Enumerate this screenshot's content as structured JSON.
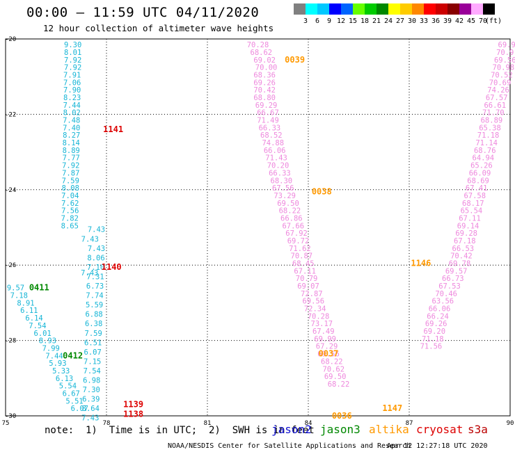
{
  "header": {
    "title": "00:00 — 11:59 UTC 04/11/2020",
    "subtitle": "12 hour collection of altimeter wave heights"
  },
  "colorbar": {
    "colors": [
      "#808080",
      "#00ffff",
      "#00c8ff",
      "#0000ff",
      "#0064ff",
      "#66ff00",
      "#00cc00",
      "#008800",
      "#ffff00",
      "#ffcc00",
      "#ff8800",
      "#ff0000",
      "#cc0000",
      "#880000",
      "#990099",
      "#ffaaff",
      "#000000"
    ],
    "labels": [
      "3",
      "6",
      "9",
      "12",
      "15",
      "18",
      "21",
      "24",
      "27",
      "30",
      "33",
      "36",
      "39",
      "42",
      "45",
      "70"
    ],
    "unit": "(ft)"
  },
  "footer": {
    "note": "note:  1)  Time is in UTC;  2)  SWH is in feet",
    "legend": [
      {
        "label": "jason2",
        "color": "#1010d0"
      },
      {
        "label": "jason3",
        "color": "#008800"
      },
      {
        "label": "altika",
        "color": "#ff9900"
      },
      {
        "label": "cryosat",
        "color": "#dd0000"
      },
      {
        "label": "s3a",
        "color": "#bb0000"
      }
    ],
    "credit": "NOAA/NESDIS Center for Satellite Applications and Research",
    "timestamp": "Apr 12 12:27:18 UTC 2020"
  },
  "chart_data": {
    "type": "scatter",
    "title": "00:00 — 11:59 UTC 04/11/2020",
    "subtitle": "12 hour collection of altimeter wave heights",
    "xlim": [
      75,
      90
    ],
    "ylim": [
      -30,
      -20
    ],
    "x_ticks": [
      "75",
      "78",
      "81",
      "84",
      "87",
      "90"
    ],
    "y_ticks": [
      "-20",
      "-22",
      "-24",
      "-26",
      "-28",
      "-30"
    ],
    "grid": true,
    "legend_position": "bottom",
    "series": [
      {
        "name": "jason3",
        "color": "#16b5d6",
        "x": [
          77.0,
          77.0,
          77.0,
          77.0,
          76.98,
          76.98,
          76.98,
          76.98,
          76.97,
          76.97,
          76.96,
          76.96,
          76.96,
          76.95,
          76.95,
          76.95,
          76.94,
          76.94,
          76.93,
          76.93,
          76.92,
          76.92,
          76.92,
          76.91,
          76.91
        ],
        "y": [
          -20.15,
          -20.35,
          -20.55,
          -20.75,
          -20.95,
          -21.15,
          -21.35,
          -21.55,
          -21.75,
          -21.95,
          -22.15,
          -22.35,
          -22.55,
          -22.75,
          -22.95,
          -23.15,
          -23.35,
          -23.55,
          -23.75,
          -23.95,
          -24.15,
          -24.35,
          -24.55,
          -24.75,
          -24.95
        ],
        "values": [
          "9.30",
          "8.01",
          "7.92",
          "7.92",
          "7.91",
          "7.06",
          "7.90",
          "8.23",
          "7.44",
          "8.02",
          "7.48",
          "7.40",
          "8.27",
          "8.14",
          "8.89",
          "7.77",
          "7.92",
          "7.87",
          "7.59",
          "8.08",
          "7.04",
          "7.62",
          "7.56",
          "7.82",
          "8.65"
        ]
      },
      {
        "name": "",
        "color": "#16b5d6",
        "x": [
          77.7,
          77.7,
          77.69,
          77.68,
          77.67,
          77.66,
          77.65,
          77.64,
          77.63,
          77.62,
          77.61,
          77.6,
          77.59,
          77.58,
          77.57,
          77.56,
          77.55,
          77.54,
          77.53,
          77.52,
          77.51,
          77.5
        ],
        "y": [
          -25.05,
          -25.55,
          -25.8,
          -26.05,
          -26.3,
          -26.55,
          -26.8,
          -27.05,
          -27.3,
          -27.55,
          -27.8,
          -28.05,
          -28.3,
          -28.55,
          -28.8,
          -29.05,
          -29.3,
          -29.55,
          -29.8,
          -30.05,
          -25.3,
          -26.2
        ],
        "values": [
          "7.43",
          "7.43",
          "8.06",
          "7.10",
          "7.31",
          "6.73",
          "7.74",
          "5.59",
          "6.88",
          "6.38",
          "7.59",
          "6.51",
          "6.07",
          "7.15",
          "7.54",
          "6.98",
          "7.30",
          "6.39",
          "8.64",
          "7.43",
          "7.43",
          "7.43"
        ]
      },
      {
        "name": "",
        "color": "#16b5d6",
        "x": [
          75.3,
          75.4,
          75.6,
          75.7,
          75.85,
          75.95,
          76.1,
          76.25,
          76.35,
          76.45,
          76.55,
          76.65,
          76.75,
          76.85,
          76.95,
          77.05,
          77.2
        ],
        "y": [
          -26.6,
          -26.8,
          -27.0,
          -27.2,
          -27.4,
          -27.6,
          -27.8,
          -28.0,
          -28.2,
          -28.4,
          -28.6,
          -28.8,
          -29.0,
          -29.2,
          -29.4,
          -29.6,
          -29.8
        ],
        "values": [
          "9.57",
          "7.18",
          "8.91",
          "6.11",
          "6.14",
          "7.54",
          "6.01",
          "8.93",
          "7.99",
          "7.44",
          "5.93",
          "5.33",
          "6.13",
          "5.54",
          "6.67",
          "5.51",
          "6.07"
        ]
      },
      {
        "name": "altika-left",
        "color": "#ee88dd",
        "x": [
          82.5,
          82.6,
          82.7,
          82.75,
          82.7,
          82.7,
          82.7,
          82.7,
          82.75,
          82.8,
          82.8,
          82.85,
          82.9,
          82.95,
          83.0,
          83.05,
          83.1,
          83.15,
          83.2,
          83.25,
          83.3,
          83.4,
          83.45,
          83.5,
          83.55,
          83.65,
          83.7,
          83.75,
          83.8,
          83.85,
          83.9,
          83.95,
          84.0,
          84.1,
          84.15,
          84.2,
          84.3,
          84.4,
          84.45,
          84.5,
          84.55,
          84.6,
          84.7,
          84.75,
          84.8,
          84.9
        ],
        "y": [
          -20.15,
          -20.35,
          -20.55,
          -20.75,
          -20.95,
          -21.15,
          -21.35,
          -21.55,
          -21.75,
          -21.95,
          -22.15,
          -22.35,
          -22.55,
          -22.75,
          -22.95,
          -23.15,
          -23.35,
          -23.55,
          -23.75,
          -23.95,
          -24.15,
          -24.35,
          -24.55,
          -24.75,
          -24.95,
          -25.15,
          -25.35,
          -25.55,
          -25.75,
          -25.95,
          -26.15,
          -26.35,
          -26.55,
          -26.75,
          -26.95,
          -27.15,
          -27.35,
          -27.55,
          -27.75,
          -27.95,
          -28.15,
          -28.35,
          -28.55,
          -28.75,
          -28.95,
          -29.15
        ],
        "values": [
          "70.28",
          "68.62",
          "69.02",
          "70.00",
          "68.36",
          "69.26",
          "70.42",
          "68.80",
          "69.29",
          "66.67",
          "71.49",
          "66.33",
          "68.52",
          "74.88",
          "66.06",
          "71.43",
          "70.20",
          "66.33",
          "68.30",
          "67.56",
          "73.29",
          "69.50",
          "68.22",
          "66.86",
          "67.66",
          "67.92",
          "69.72",
          "71.62",
          "70.87",
          "68.45",
          "67.11",
          "70.79",
          "69.07",
          "72.87",
          "69.56",
          "72.34",
          "70.28",
          "73.17",
          "67.49",
          "69.99",
          "67.29",
          "69.56",
          "68.22",
          "70.62",
          "69.50",
          "68.22"
        ]
      },
      {
        "name": "altika-right",
        "color": "#ee88dd",
        "x": [
          89.9,
          89.85,
          89.85,
          89.8,
          89.75,
          89.7,
          89.65,
          89.6,
          89.55,
          89.5,
          89.45,
          89.4,
          89.35,
          89.3,
          89.25,
          89.2,
          89.15,
          89.1,
          89.05,
          89.0,
          88.95,
          88.9,
          88.85,
          88.8,
          88.75,
          88.7,
          88.65,
          88.6,
          88.55,
          88.5,
          88.4,
          88.3,
          88.2,
          88.1,
          88.0,
          87.9,
          87.85,
          87.8,
          87.75,
          87.7,
          87.65
        ],
        "y": [
          -20.15,
          -20.35,
          -20.55,
          -20.75,
          -20.95,
          -21.15,
          -21.35,
          -21.55,
          -21.75,
          -21.95,
          -22.15,
          -22.35,
          -22.55,
          -22.75,
          -22.95,
          -23.15,
          -23.35,
          -23.55,
          -23.75,
          -23.95,
          -24.15,
          -24.35,
          -24.55,
          -24.75,
          -24.95,
          -25.15,
          -25.35,
          -25.55,
          -25.75,
          -25.95,
          -26.15,
          -26.35,
          -26.55,
          -26.75,
          -26.95,
          -27.15,
          -27.35,
          -27.55,
          -27.75,
          -27.95,
          -28.15
        ],
        "values": [
          "69.9",
          "70.9",
          "69.56",
          "70.98",
          "70.52",
          "70.69",
          "74.26",
          "67.57",
          "66.61",
          "71.70",
          "68.89",
          "65.38",
          "71.18",
          "71.14",
          "68.76",
          "64.94",
          "65.26",
          "66.09",
          "68.69",
          "67.41",
          "67.58",
          "68.17",
          "65.54",
          "67.11",
          "69.14",
          "69.28",
          "67.18",
          "66.53",
          "70.42",
          "69.78",
          "69.57",
          "66.73",
          "67.53",
          "70.46",
          "63.56",
          "66.06",
          "66.24",
          "69.26",
          "69.20",
          "71.18",
          "71.56"
        ]
      }
    ],
    "annotations": [
      {
        "text": "0039",
        "x": 83.3,
        "y": -20.55,
        "color": "#ff9900"
      },
      {
        "text": "0038",
        "x": 84.1,
        "y": -24.05,
        "color": "#ff9900"
      },
      {
        "text": "0037",
        "x": 84.3,
        "y": -28.35,
        "color": "#ff9900"
      },
      {
        "text": "0036",
        "x": 84.7,
        "y": -30.0,
        "color": "#ff9900"
      },
      {
        "text": "1146",
        "x": 87.05,
        "y": -25.95,
        "color": "#ff9900"
      },
      {
        "text": "1147",
        "x": 86.2,
        "y": -29.8,
        "color": "#ff9900"
      },
      {
        "text": "1141",
        "x": 77.9,
        "y": -22.4,
        "color": "#dd0000"
      },
      {
        "text": "1140",
        "x": 77.85,
        "y": -26.05,
        "color": "#dd0000"
      },
      {
        "text": "1139",
        "x": 78.5,
        "y": -29.7,
        "color": "#dd0000"
      },
      {
        "text": "1138",
        "x": 78.5,
        "y": -29.95,
        "color": "#dd0000"
      },
      {
        "text": "0411",
        "x": 75.7,
        "y": -26.6,
        "color": "#008800"
      },
      {
        "text": "0412",
        "x": 76.7,
        "y": -28.4,
        "color": "#008800"
      }
    ]
  }
}
